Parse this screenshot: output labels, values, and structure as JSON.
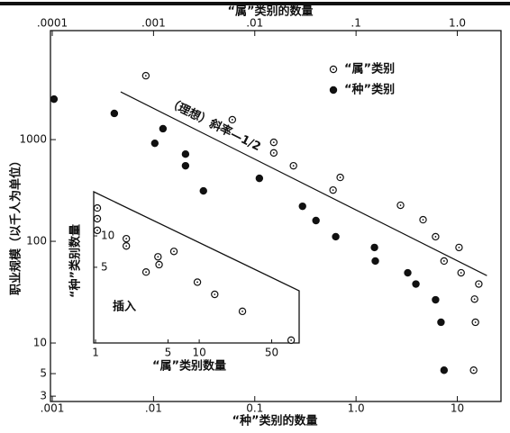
{
  "chart_data": [
    {
      "type": "scatter",
      "x2label": "“属”类别的数量",
      "xlabel": "“种”类别的数量",
      "ylabel": "职业规模（以千人为单位）",
      "log_x": true,
      "log_y": true,
      "xlim": [
        0.00096,
        27
      ],
      "x2lim": [
        9.6e-05,
        2.7
      ],
      "ylim": [
        2.66,
        11800
      ],
      "xticks": [
        {
          "value": 0.001,
          "label": ".001"
        },
        {
          "value": 0.01,
          "label": ".01"
        },
        {
          "value": 0.1,
          "label": "0.1"
        },
        {
          "value": 1,
          "label": "1.0"
        },
        10
      ],
      "x2ticks": [
        {
          "value": 0.0001,
          "label": ".0001"
        },
        {
          "value": 0.001,
          "label": ".001"
        },
        {
          "value": 0.01,
          "label": ".01"
        },
        {
          "value": 0.1,
          "label": ".1"
        },
        {
          "value": 1,
          "label": "1.0"
        }
      ],
      "yticks": [
        3,
        5,
        10,
        100,
        1000
      ],
      "legend": "upper right",
      "series": [
        {
          "name": "“属”类别",
          "marker": "open",
          "color": "#111111",
          "xaxis": "x2",
          "x": [
            0.00084,
            0.006,
            0.0154,
            0.0154,
            0.0241,
            0.0698,
            0.0593,
            0.275,
            0.459,
            0.61,
            1.04,
            0.74,
            1.09,
            1.63,
            1.48,
            1.51,
            1.45
          ],
          "values": [
            4250,
            1570,
            940,
            740,
            553,
            425,
            319,
            226,
            163,
            111,
            87,
            64,
            49,
            38,
            27,
            16,
            5.4
          ]
        },
        {
          "name": "“种”类别",
          "marker": "solid",
          "color": "#111111",
          "x": [
            0.00104,
            0.0041,
            0.0124,
            0.0103,
            0.0207,
            0.0207,
            0.0311,
            0.111,
            0.296,
            0.402,
            0.63,
            1.52,
            1.55,
            3.24,
            3.9,
            6.1,
            6.9,
            7.4
          ],
          "values": [
            2500,
            1810,
            1280,
            920,
            720,
            553,
            313,
            416,
            221,
            160,
            111,
            87,
            64,
            49,
            38,
            26.6,
            16,
            5.4
          ]
        }
      ],
      "reference_line": {
        "label": "（理想）斜率—1/2",
        "x": [
          0.00474,
          19.6
        ],
        "values": [
          2945,
          46
        ]
      }
    },
    {
      "type": "scatter",
      "xlabel": "“属”类别数量",
      "ylabel": "“种”类别数量",
      "annotation": "插入",
      "log_x": true,
      "log_y": true,
      "xlim": [
        0.96,
        92
      ],
      "ylim": [
        0.94,
        26.5
      ],
      "xticks": [
        1,
        5,
        10,
        50
      ],
      "yticks": [
        5,
        10
      ],
      "marker": "open",
      "color": "#111111",
      "x": [
        1.04,
        1.04,
        1.04,
        1.98,
        1.98,
        4.0,
        4.1,
        3.07,
        5.7,
        9.6,
        14.1,
        26.1,
        77
      ],
      "values": [
        18.5,
        14.6,
        11.3,
        9.4,
        8.0,
        6.3,
        5.3,
        4.5,
        7.1,
        3.6,
        2.75,
        1.89,
        1.0
      ]
    }
  ]
}
